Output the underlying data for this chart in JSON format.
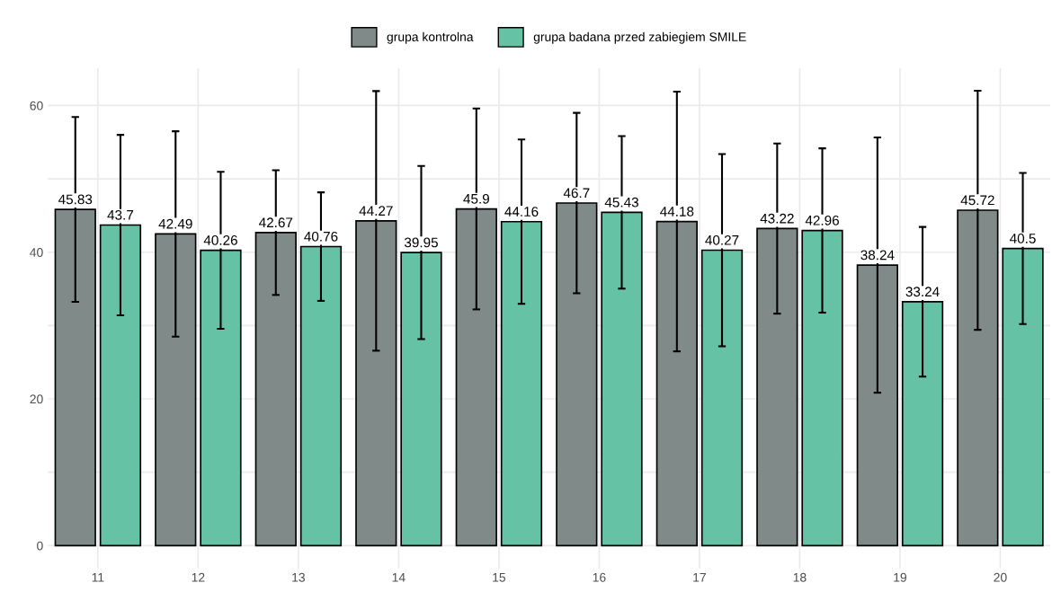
{
  "chart_data": {
    "type": "bar",
    "categories": [
      "11",
      "12",
      "13",
      "14",
      "15",
      "16",
      "17",
      "18",
      "19",
      "20"
    ],
    "series": [
      {
        "name": "grupa kontrolna",
        "color": "#7f8a89",
        "values": [
          45.83,
          42.49,
          42.67,
          44.27,
          45.9,
          46.7,
          44.18,
          43.22,
          38.24,
          45.72
        ],
        "errors": [
          12.6,
          14.0,
          8.5,
          17.7,
          13.7,
          12.3,
          17.7,
          11.6,
          17.4,
          16.3
        ]
      },
      {
        "name": "grupa badana przed zabiegiem SMILE",
        "color": "#66c2a5",
        "values": [
          43.7,
          40.26,
          40.76,
          39.95,
          44.16,
          45.43,
          40.27,
          42.96,
          33.24,
          40.5
        ],
        "errors": [
          12.3,
          10.7,
          7.4,
          11.8,
          11.2,
          10.4,
          13.1,
          11.2,
          10.2,
          10.3
        ]
      }
    ],
    "ylim": [
      -3.1,
      65.1
    ],
    "yticks": [
      0,
      {
        "value": 10,
        "label": null
      },
      20,
      {
        "value": 30,
        "label": null
      },
      40,
      {
        "value": 50,
        "label": null
      },
      60
    ],
    "grid": true,
    "legend": "top",
    "data_labels": true
  }
}
